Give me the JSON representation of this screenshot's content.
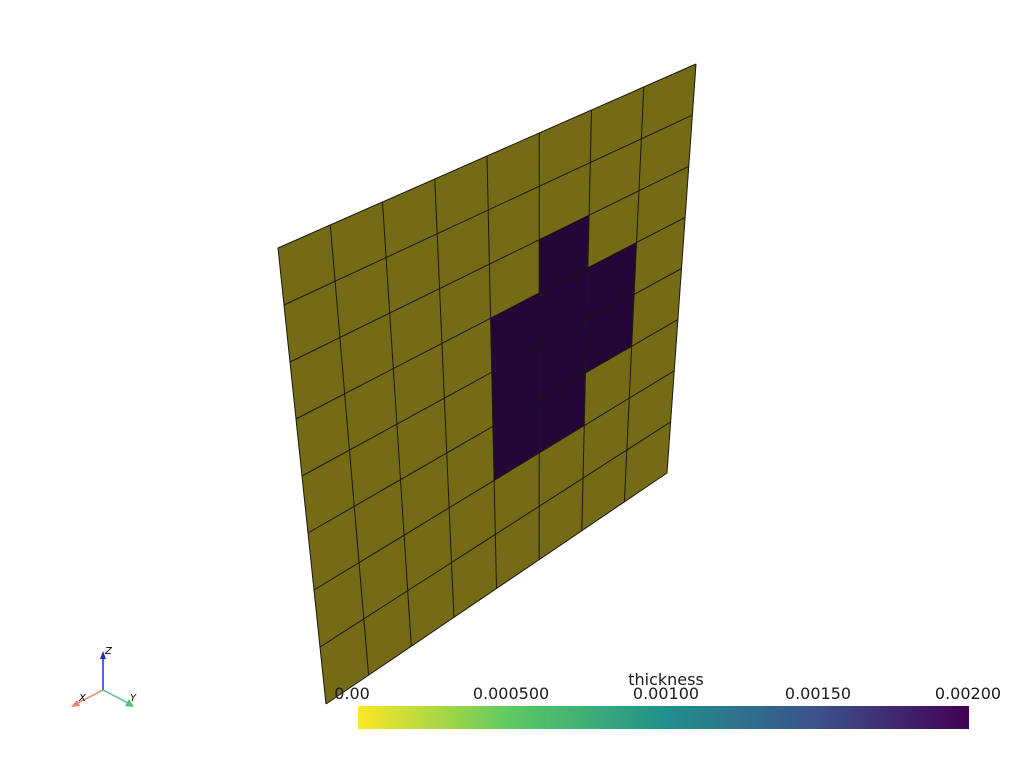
{
  "scene": {
    "mesh": {
      "rows": 8,
      "cols": 8,
      "base_color": "#756b16",
      "highlight_color": "#250638",
      "edge_color": "#1a1a10",
      "highlighted_cells": [
        [
          2,
          5
        ],
        [
          3,
          4
        ],
        [
          3,
          5
        ],
        [
          3,
          6
        ],
        [
          4,
          4
        ],
        [
          4,
          5
        ],
        [
          4,
          6
        ],
        [
          5,
          4
        ],
        [
          5,
          5
        ]
      ]
    },
    "axes": {
      "x_label": "X",
      "y_label": "Y",
      "z_label": "Z",
      "x_color": "#f08070",
      "y_color": "#55c080",
      "z_color": "#1a2fd0"
    }
  },
  "colorbar": {
    "title": "thickness",
    "ticks": [
      "0.00",
      "0.000500",
      "0.00100",
      "0.00150",
      "0.00200"
    ],
    "range": [
      0,
      0.002
    ],
    "colormap": "viridis",
    "colormap_stops": [
      "#fde725",
      "#5ec962",
      "#21918c",
      "#3b528b",
      "#440154"
    ]
  }
}
